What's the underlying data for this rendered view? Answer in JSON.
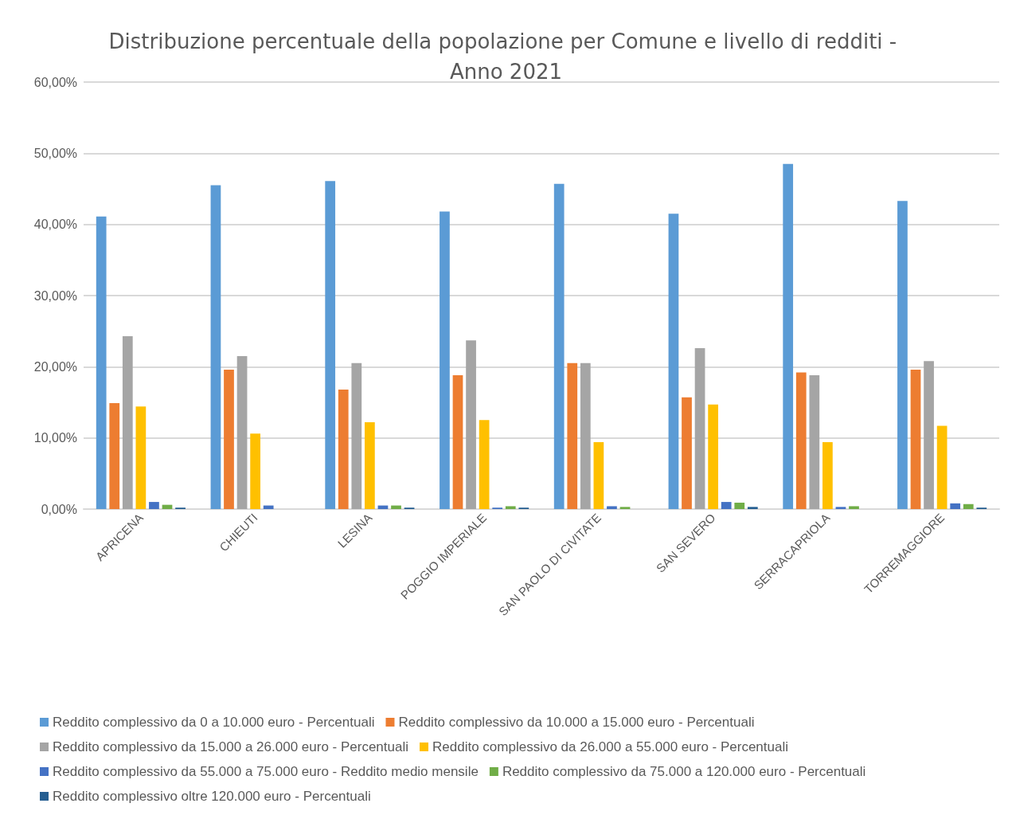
{
  "chart_data": {
    "type": "bar",
    "title": "Distribuzione percentuale della popolazione per Comune e livello di redditi - Anno 2021",
    "categories": [
      "APRICENA",
      "CHIEUTI",
      "LESINA",
      "POGGIO IMPERIALE",
      "SAN PAOLO DI CIVITATE",
      "SAN SEVERO",
      "SERRACAPRIOLA",
      "TORREMAGGIORE"
    ],
    "series": [
      {
        "name": "Reddito complessivo da 0 a 10.000 euro - Percentuali",
        "color": "#5b9bd5",
        "values": [
          41.1,
          45.5,
          46.1,
          41.8,
          45.7,
          41.5,
          48.5,
          43.3
        ]
      },
      {
        "name": "Reddito complessivo da 10.000 a 15.000 euro - Percentuali",
        "color": "#ed7d31",
        "values": [
          14.9,
          19.6,
          16.8,
          18.8,
          20.5,
          15.7,
          19.2,
          19.6
        ]
      },
      {
        "name": "Reddito complessivo da 15.000 a 26.000 euro - Percentuali",
        "color": "#a5a5a5",
        "values": [
          24.3,
          21.5,
          20.5,
          23.7,
          20.5,
          22.6,
          18.8,
          20.8
        ]
      },
      {
        "name": "Reddito complessivo da 26.000 a 55.000 euro - Percentuali",
        "color": "#ffc000",
        "values": [
          14.4,
          10.6,
          12.2,
          12.5,
          9.4,
          14.7,
          9.4,
          11.7
        ]
      },
      {
        "name": "Reddito complessivo da 55.000 a 75.000 euro - Reddito medio mensile",
        "color": "#4472c4",
        "values": [
          1.0,
          0.5,
          0.5,
          0.2,
          0.4,
          1.0,
          0.3,
          0.8
        ]
      },
      {
        "name": "Reddito complessivo da 75.000 a 120.000 euro - Percentuali",
        "color": "#70ad47",
        "values": [
          0.6,
          0,
          0.5,
          0.4,
          0.3,
          0.9,
          0.4,
          0.7
        ]
      },
      {
        "name": "Reddito complessivo oltre 120.000 euro - Percentuali",
        "color": "#255e91",
        "values": [
          0.2,
          0,
          0.2,
          0.2,
          0,
          0.3,
          0,
          0.2
        ]
      }
    ],
    "ylim": [
      0,
      60
    ],
    "yticks": [
      {
        "value": 0,
        "label": "0,00%"
      },
      {
        "value": 10,
        "label": "10,00%"
      },
      {
        "value": 20,
        "label": "20,00%"
      },
      {
        "value": 30,
        "label": "30,00%"
      },
      {
        "value": 40,
        "label": "40,00%"
      },
      {
        "value": 50,
        "label": "50,00%"
      },
      {
        "value": 60,
        "label": "60,00%"
      }
    ],
    "grid": "y",
    "legend": "bottom"
  }
}
